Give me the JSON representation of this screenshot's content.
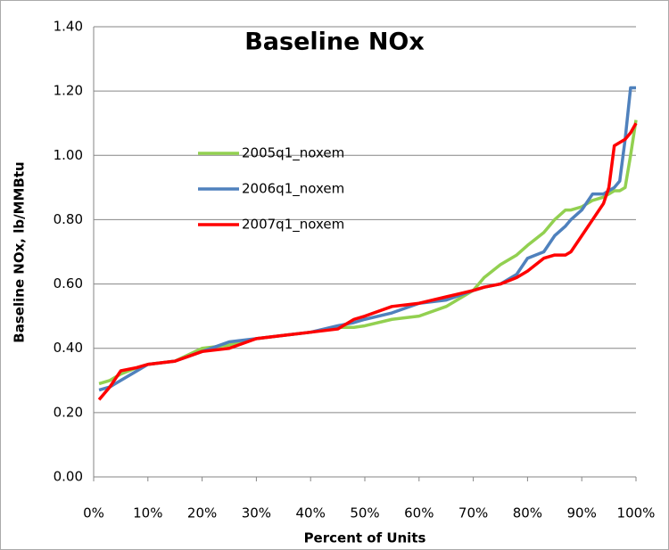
{
  "chart_data": {
    "type": "line",
    "title": "Baseline NOx",
    "x_label": "Percent of Units",
    "y_label": "Baseline NOx, lb/MMBtu",
    "x": [
      1,
      3,
      5,
      8,
      10,
      15,
      20,
      25,
      30,
      35,
      40,
      45,
      48,
      50,
      55,
      60,
      65,
      70,
      72,
      75,
      78,
      80,
      83,
      85,
      87,
      88,
      90,
      92,
      94,
      95,
      96,
      97,
      98,
      99,
      100
    ],
    "series": [
      {
        "name": "2005q1_noxem",
        "color": "#92d050",
        "values": [
          0.29,
          0.3,
          0.32,
          0.34,
          0.35,
          0.36,
          0.4,
          0.41,
          0.43,
          0.44,
          0.45,
          0.465,
          0.465,
          0.47,
          0.49,
          0.5,
          0.53,
          0.58,
          0.62,
          0.66,
          0.69,
          0.72,
          0.76,
          0.8,
          0.83,
          0.83,
          0.84,
          0.86,
          0.87,
          0.88,
          0.89,
          0.89,
          0.9,
          1.0,
          1.11
        ]
      },
      {
        "name": "2006q1_noxem",
        "color": "#4f81bd",
        "values": [
          0.27,
          0.28,
          0.3,
          0.33,
          0.35,
          0.36,
          0.39,
          0.42,
          0.43,
          0.44,
          0.45,
          0.47,
          0.48,
          0.49,
          0.51,
          0.54,
          0.55,
          0.58,
          0.59,
          0.6,
          0.63,
          0.68,
          0.7,
          0.75,
          0.78,
          0.8,
          0.83,
          0.88,
          0.88,
          0.89,
          0.9,
          0.92,
          1.05,
          1.21,
          1.21
        ]
      },
      {
        "name": "2007q1_noxem",
        "color": "#ff0000",
        "values": [
          0.24,
          0.28,
          0.33,
          0.34,
          0.35,
          0.36,
          0.39,
          0.4,
          0.43,
          0.44,
          0.45,
          0.46,
          0.49,
          0.5,
          0.53,
          0.54,
          0.56,
          0.58,
          0.59,
          0.6,
          0.62,
          0.64,
          0.68,
          0.69,
          0.69,
          0.7,
          0.75,
          0.8,
          0.85,
          0.9,
          1.03,
          1.04,
          1.05,
          1.07,
          1.1
        ]
      }
    ],
    "xlim": [
      0,
      100
    ],
    "xticks": [
      {
        "value": 0,
        "label": "0%"
      },
      {
        "value": 10,
        "label": "10%"
      },
      {
        "value": 20,
        "label": "20%"
      },
      {
        "value": 30,
        "label": "30%"
      },
      {
        "value": 40,
        "label": "40%"
      },
      {
        "value": 50,
        "label": "50%"
      },
      {
        "value": 60,
        "label": "60%"
      },
      {
        "value": 70,
        "label": "70%"
      },
      {
        "value": 80,
        "label": "80%"
      },
      {
        "value": 90,
        "label": "90%"
      },
      {
        "value": 100,
        "label": "100%"
      }
    ],
    "ylim": [
      0,
      1.4
    ],
    "yticks": [
      {
        "value": 0,
        "label": "0.00"
      },
      {
        "value": 0.2,
        "label": "0.20"
      },
      {
        "value": 0.4,
        "label": "0.40"
      },
      {
        "value": 0.6,
        "label": "0.60"
      },
      {
        "value": 0.8,
        "label": "0.80"
      },
      {
        "value": 1.0,
        "label": "1.00"
      },
      {
        "value": 1.2,
        "label": "1.20"
      },
      {
        "value": 1.4,
        "label": "1.40"
      }
    ],
    "grid": true
  }
}
